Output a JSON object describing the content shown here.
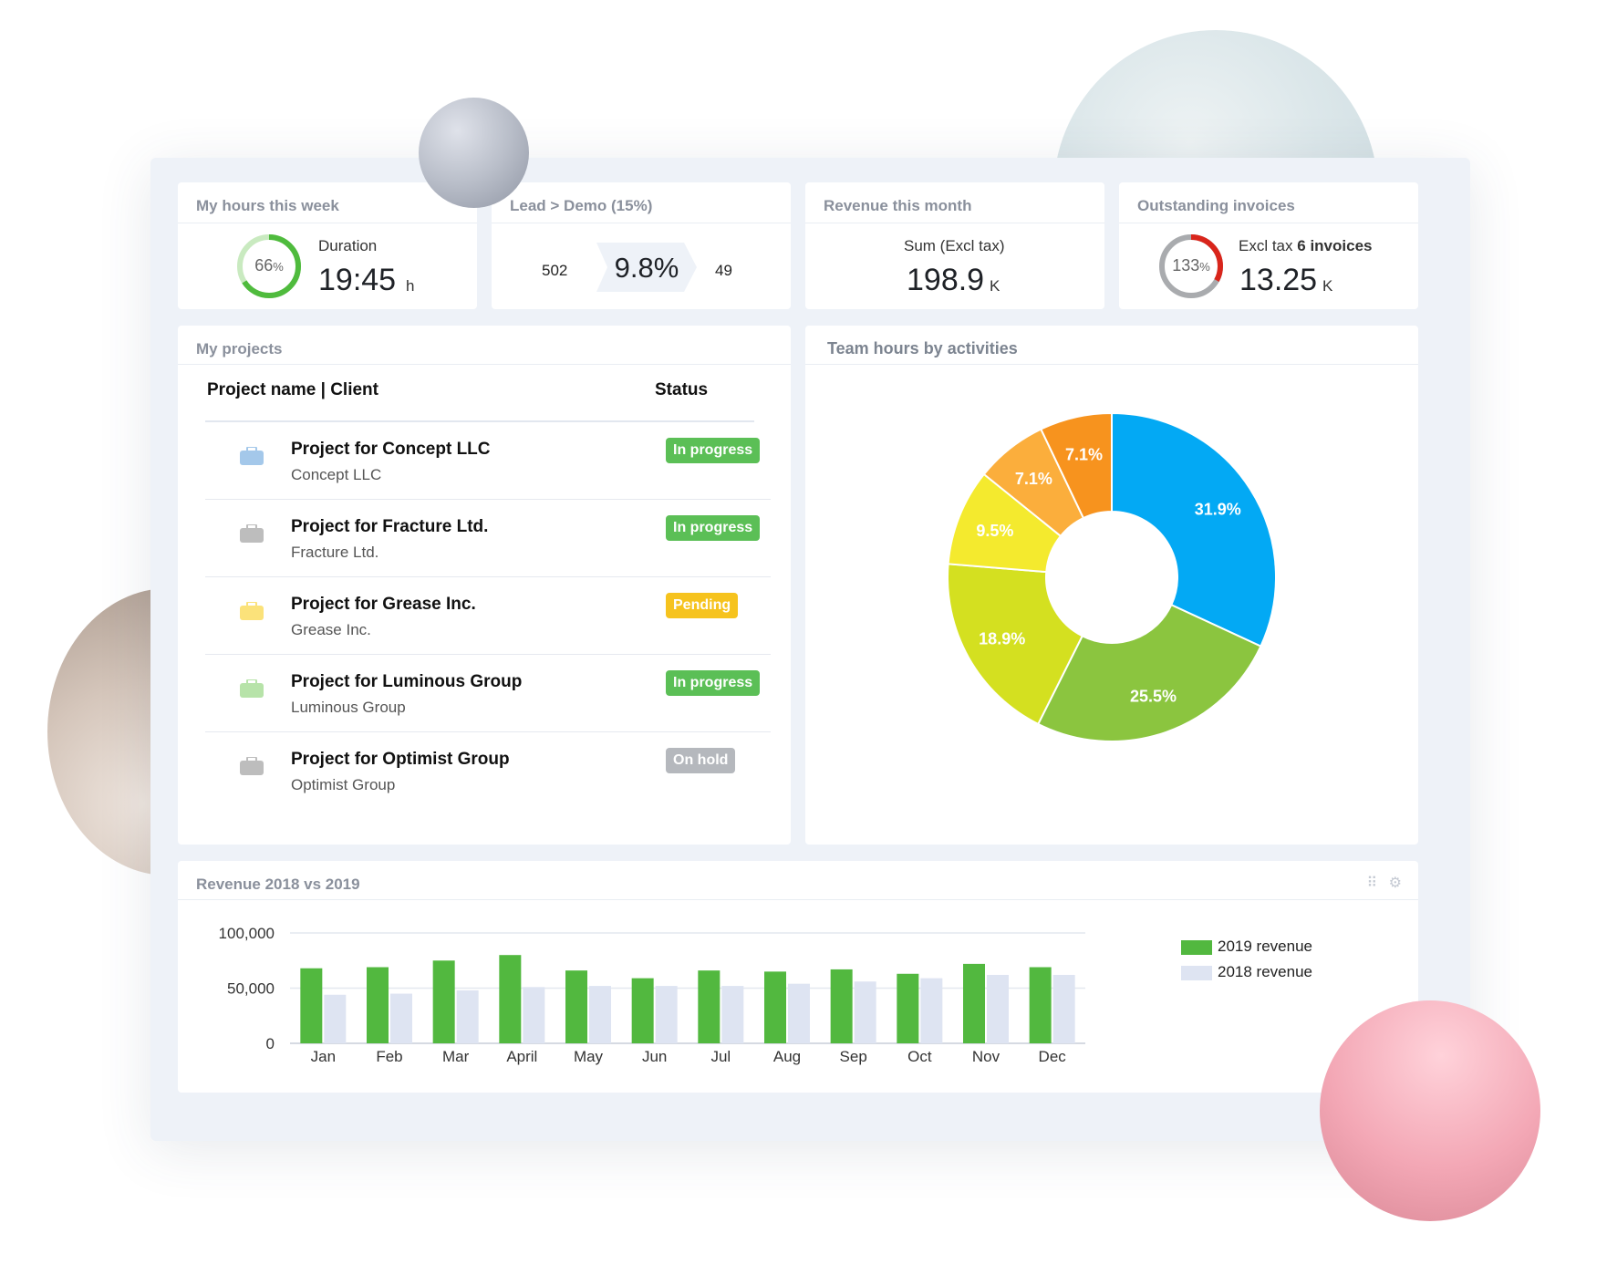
{
  "kpis": {
    "hours": {
      "title": "My hours this week",
      "ring_pct": "66",
      "ring_pct_sign": "%",
      "ring_fraction": 0.66,
      "label": "Duration",
      "value": "19:45",
      "unit": "h"
    },
    "lead": {
      "title": "Lead > Demo (15%)",
      "left": "502",
      "center": "9.8%",
      "right": "49"
    },
    "revenue": {
      "title": "Revenue this month",
      "label": "Sum (Excl tax)",
      "value": "198.9",
      "unit": "K"
    },
    "invoices": {
      "title": "Outstanding invoices",
      "ring_pct": "133",
      "ring_pct_sign": "%",
      "ring_fraction": 0.33,
      "label_prefix": "Excl tax",
      "label_bold": "6 invoices",
      "value": "13.25",
      "unit": "K"
    }
  },
  "projects": {
    "title": "My projects",
    "col_name": "Project name | Client",
    "col_status": "Status",
    "rows": [
      {
        "name": "Project for Concept LLC",
        "client": "Concept LLC",
        "status": "In progress",
        "icon_color": "#a4c8ea",
        "status_kind": "green"
      },
      {
        "name": "Project for Fracture Ltd.",
        "client": "Fracture Ltd.",
        "status": "In progress",
        "icon_color": "#bdbdbd",
        "status_kind": "green"
      },
      {
        "name": "Project for Grease Inc.",
        "client": "Grease Inc.",
        "status": "Pending",
        "icon_color": "#fbe27a",
        "status_kind": "yellow"
      },
      {
        "name": "Project for Luminous Group",
        "client": "Luminous Group",
        "status": "In progress",
        "icon_color": "#b7e3a9",
        "status_kind": "green"
      },
      {
        "name": "Project for Optimist Group",
        "client": "Optimist Group",
        "status": "On hold",
        "icon_color": "#bdbdbd",
        "status_kind": "grey"
      }
    ]
  },
  "chart_data": [
    {
      "type": "pie",
      "title": "Team hours by activities",
      "donut": true,
      "slices": [
        {
          "label": "31.9%",
          "value": 31.9,
          "color": "#03a9f4"
        },
        {
          "label": "25.5%",
          "value": 25.5,
          "color": "#8bc53f"
        },
        {
          "label": "18.9%",
          "value": 18.9,
          "color": "#d4e020"
        },
        {
          "label": "9.5%",
          "value": 9.5,
          "color": "#f4ea2e"
        },
        {
          "label": "7.1%",
          "value": 7.1,
          "color": "#fbae3c"
        },
        {
          "label": "7.1%",
          "value": 7.1,
          "color": "#f7931e"
        }
      ]
    },
    {
      "type": "bar",
      "title": "Revenue 2018 vs 2019",
      "categories": [
        "Jan",
        "Feb",
        "Mar",
        "April",
        "May",
        "Jun",
        "Jul",
        "Aug",
        "Sep",
        "Oct",
        "Nov",
        "Dec"
      ],
      "series": [
        {
          "name": "2019 revenue",
          "color": "#52b83f",
          "values": [
            68000,
            69000,
            75000,
            80000,
            66000,
            59000,
            66000,
            65000,
            67000,
            63000,
            72000,
            69000
          ]
        },
        {
          "name": "2018 revenue",
          "color": "#dee4f2",
          "values": [
            44000,
            45000,
            48000,
            51000,
            52000,
            52000,
            52000,
            54000,
            56000,
            59000,
            62000,
            62000
          ]
        }
      ],
      "ylim": [
        0,
        100000
      ],
      "yticks": [
        "100,000",
        "50,000",
        "0"
      ],
      "ytick_values": [
        100000,
        50000,
        0
      ],
      "legend": "right",
      "grid": true
    }
  ],
  "widget_controls": {
    "icons": "⠿ ⚙"
  }
}
